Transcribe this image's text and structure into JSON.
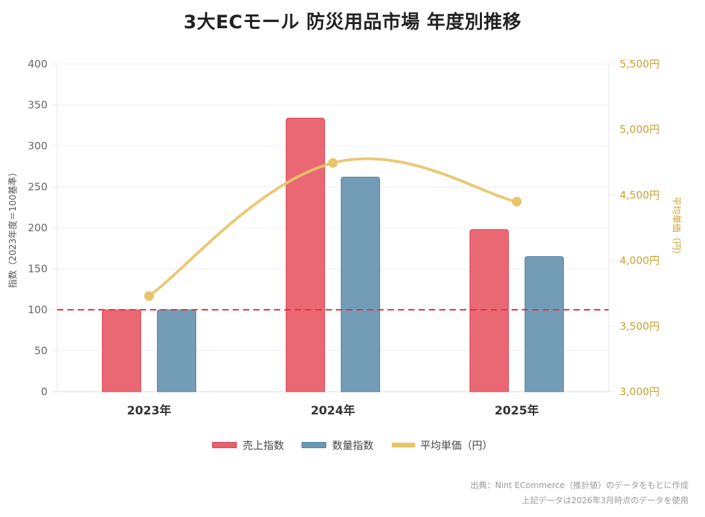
{
  "chart_data": {
    "type": "bar",
    "title": "3大ECモール 防災用品市場 年度別推移",
    "categories": [
      "2023年",
      "2024年",
      "2025年"
    ],
    "series": [
      {
        "name": "売上指数",
        "type": "bar",
        "axis": "left",
        "color": "#e8606c",
        "values": [
          100,
          334,
          198
        ]
      },
      {
        "name": "数量指数",
        "type": "bar",
        "axis": "left",
        "color": "#6b97b3",
        "values": [
          100,
          262,
          165
        ]
      },
      {
        "name": "平均単価（円）",
        "type": "line",
        "axis": "right",
        "color": "#e9c46a",
        "values": [
          3730,
          4745,
          4450
        ]
      }
    ],
    "ylabel": "指数（2023年度＝100基準）",
    "ylim": [
      0,
      400
    ],
    "yticks": [
      0,
      50,
      100,
      150,
      200,
      250,
      300,
      350,
      400
    ],
    "y2label": "平均単価（円）",
    "y2lim": [
      3000,
      5500
    ],
    "y2ticks": [
      "3,000円",
      "3,500円",
      "4,000円",
      "4,500円",
      "5,000円",
      "5,500円"
    ],
    "y2tick_values": [
      3000,
      3500,
      4000,
      4500,
      5000,
      5500
    ],
    "reference_line": {
      "value": 100,
      "color": "#e0303f",
      "style": "dashed"
    },
    "grid": true,
    "legend_position": "bottom"
  },
  "source": {
    "line1": "出典：Nint ECommerce（推計値）のデータをもとに作成",
    "line2": "上記データは2026年3月時点のデータを使用"
  }
}
